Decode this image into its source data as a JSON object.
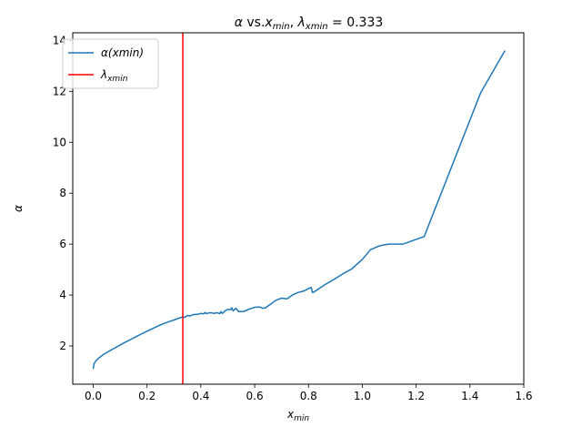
{
  "chart_data": {
    "type": "line",
    "title": "α vs.x_min, λ_xmin = 0.333",
    "title_parts": {
      "alpha": "α",
      "vs": " vs.",
      "x": "x",
      "x_sub": "min",
      "sep": ", ",
      "lambda": "λ",
      "lambda_sub": "xmin",
      "eq": " = 0.333"
    },
    "xlabel": "x_min",
    "xlabel_parts": {
      "base": "x",
      "sub": "min"
    },
    "ylabel": "α",
    "xlim": [
      -0.076,
      1.6
    ],
    "ylim": [
      0.5,
      14.3
    ],
    "xticks": [
      0.0,
      0.2,
      0.4,
      0.6,
      0.8,
      1.0,
      1.2,
      1.4,
      1.6
    ],
    "xtick_labels": [
      "0.0",
      "0.2",
      "0.4",
      "0.6",
      "0.8",
      "1.0",
      "1.2",
      "1.4",
      "1.6"
    ],
    "yticks": [
      2,
      4,
      6,
      8,
      10,
      12,
      14
    ],
    "ytick_labels": [
      "2",
      "4",
      "6",
      "8",
      "10",
      "12",
      "14"
    ],
    "grid": false,
    "legend_position": "top-left",
    "series": [
      {
        "name": "α(xmin)",
        "name_parts": {
          "base": "α(xmin)"
        },
        "color": "#1f77b4",
        "x": [
          0.0,
          0.003,
          0.01,
          0.02,
          0.04,
          0.06,
          0.08,
          0.1,
          0.12,
          0.14,
          0.16,
          0.18,
          0.2,
          0.22,
          0.24,
          0.26,
          0.28,
          0.3,
          0.32,
          0.333,
          0.34,
          0.35,
          0.36,
          0.37,
          0.38,
          0.39,
          0.4,
          0.41,
          0.415,
          0.42,
          0.43,
          0.44,
          0.45,
          0.46,
          0.47,
          0.475,
          0.48,
          0.49,
          0.5,
          0.51,
          0.515,
          0.52,
          0.53,
          0.54,
          0.56,
          0.58,
          0.6,
          0.62,
          0.63,
          0.64,
          0.66,
          0.68,
          0.7,
          0.72,
          0.74,
          0.76,
          0.78,
          0.8,
          0.81,
          0.815,
          0.82,
          0.86,
          0.9,
          0.93,
          0.96,
          1.0,
          1.03,
          1.06,
          1.08,
          1.1,
          1.12,
          1.15,
          1.23,
          1.44,
          1.53
        ],
        "y": [
          1.1,
          1.3,
          1.42,
          1.52,
          1.68,
          1.8,
          1.92,
          2.04,
          2.15,
          2.26,
          2.37,
          2.48,
          2.58,
          2.68,
          2.78,
          2.87,
          2.95,
          3.02,
          3.1,
          3.14,
          3.12,
          3.2,
          3.18,
          3.23,
          3.24,
          3.25,
          3.28,
          3.26,
          3.32,
          3.27,
          3.3,
          3.3,
          3.28,
          3.31,
          3.27,
          3.35,
          3.28,
          3.38,
          3.44,
          3.42,
          3.5,
          3.38,
          3.48,
          3.35,
          3.36,
          3.45,
          3.52,
          3.53,
          3.48,
          3.5,
          3.65,
          3.8,
          3.88,
          3.85,
          4.0,
          4.1,
          4.15,
          4.25,
          4.3,
          4.1,
          4.12,
          4.4,
          4.65,
          4.85,
          5.02,
          5.4,
          5.78,
          5.92,
          5.97,
          6.0,
          6.0,
          6.0,
          6.3,
          11.95,
          13.6
        ]
      },
      {
        "name": "λ_xmin",
        "name_parts": {
          "base": "λ",
          "sub": "xmin"
        },
        "color": "#ff0000",
        "type": "vline",
        "x": 0.333
      }
    ]
  }
}
